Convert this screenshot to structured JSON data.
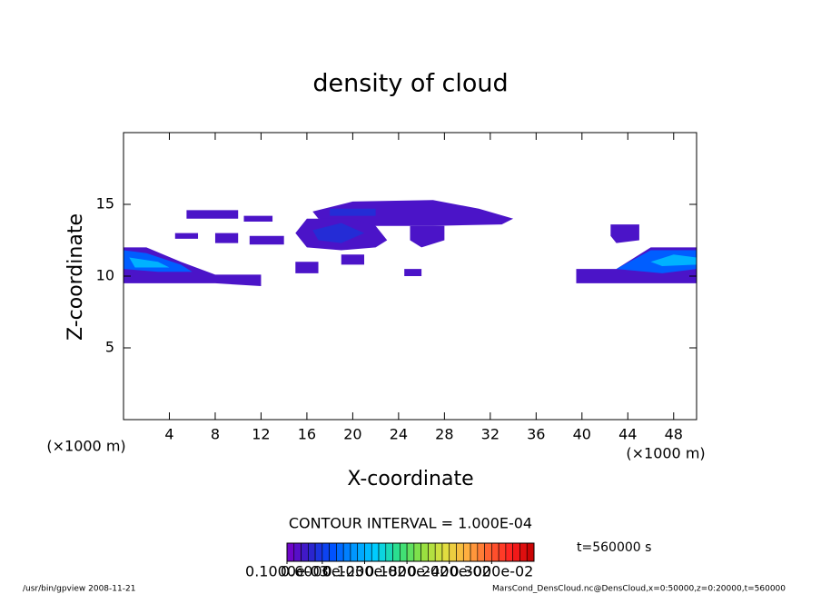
{
  "chart_data": {
    "type": "contour",
    "title": "density of cloud",
    "xlabel": "X-coordinate",
    "ylabel": "Z-coordinate",
    "x_unit_left": "(×1000 m)",
    "x_unit_right": "(×1000 m)",
    "xlim": [
      0,
      50
    ],
    "ylim": [
      0,
      20
    ],
    "xticks": [
      4,
      8,
      12,
      16,
      20,
      24,
      28,
      32,
      36,
      40,
      44,
      48
    ],
    "yticks": [
      5,
      10,
      15
    ],
    "contour_interval_text": "CONTOUR INTERVAL = 1.000E-04",
    "time_text": "t=560000 s",
    "colorbar_lim": [
      0.0001,
      0.0036
    ],
    "colorbar_step": 0.0001,
    "colorbar_ticks": [
      {
        "value": 0.0001,
        "label": "0.1000e-03"
      },
      {
        "value": 0.0006,
        "label": "0.6000e-03"
      },
      {
        "value": 0.0012,
        "label": "0.1200e-02"
      },
      {
        "value": 0.0018,
        "label": "0.1800e-02"
      },
      {
        "value": 0.0024,
        "label": "0.2400e-02"
      },
      {
        "value": 0.003,
        "label": "0.3000e-02"
      }
    ],
    "colormap": [
      "#7a00c8",
      "#3020c8",
      "#0050ff",
      "#0098ff",
      "#00d0ff",
      "#30e080",
      "#90e040",
      "#e0e040",
      "#ffb040",
      "#ff6030",
      "#ff2020",
      "#c00000"
    ],
    "patches": [
      {
        "value": 0.0003,
        "points": [
          [
            0,
            12
          ],
          [
            2,
            12
          ],
          [
            5,
            11
          ],
          [
            8,
            10.1
          ],
          [
            12,
            10.1
          ],
          [
            12,
            9.3
          ],
          [
            8,
            9.5
          ],
          [
            0,
            9.5
          ]
        ]
      },
      {
        "value": 0.0008,
        "points": [
          [
            0,
            11.8
          ],
          [
            2,
            11.6
          ],
          [
            5,
            10.8
          ],
          [
            6,
            10.3
          ],
          [
            3,
            10.3
          ],
          [
            0,
            10.5
          ]
        ]
      },
      {
        "value": 0.0012,
        "points": [
          [
            0.5,
            11.3
          ],
          [
            3,
            11
          ],
          [
            4,
            10.6
          ],
          [
            1,
            10.6
          ]
        ]
      },
      {
        "value": 0.0003,
        "points": [
          [
            39.5,
            10.5
          ],
          [
            43,
            10.5
          ],
          [
            46,
            12
          ],
          [
            50,
            12
          ],
          [
            50,
            9.5
          ],
          [
            39.5,
            9.5
          ]
        ]
      },
      {
        "value": 0.0008,
        "points": [
          [
            43,
            10.5
          ],
          [
            46,
            11.8
          ],
          [
            50,
            11.8
          ],
          [
            50,
            10.5
          ],
          [
            47,
            10.2
          ]
        ]
      },
      {
        "value": 0.0012,
        "points": [
          [
            46,
            11
          ],
          [
            48,
            11.5
          ],
          [
            50,
            11.3
          ],
          [
            50,
            10.8
          ],
          [
            47,
            10.7
          ]
        ]
      },
      {
        "value": 0.0003,
        "points": [
          [
            5.5,
            14.6
          ],
          [
            10,
            14.6
          ],
          [
            10,
            14
          ],
          [
            5.5,
            14
          ]
        ]
      },
      {
        "value": 0.0003,
        "points": [
          [
            4.5,
            13
          ],
          [
            6.5,
            13
          ],
          [
            6.5,
            12.6
          ],
          [
            4.5,
            12.6
          ]
        ]
      },
      {
        "value": 0.0003,
        "points": [
          [
            8,
            13
          ],
          [
            10,
            13
          ],
          [
            10,
            12.3
          ],
          [
            8,
            12.3
          ]
        ]
      },
      {
        "value": 0.0003,
        "points": [
          [
            10.5,
            14.2
          ],
          [
            13,
            14.2
          ],
          [
            13,
            13.8
          ],
          [
            10.5,
            13.8
          ]
        ]
      },
      {
        "value": 0.0003,
        "points": [
          [
            11,
            12.8
          ],
          [
            14,
            12.8
          ],
          [
            14,
            12.2
          ],
          [
            11,
            12.2
          ]
        ]
      },
      {
        "value": 0.0003,
        "points": [
          [
            16.5,
            14.5
          ],
          [
            20,
            15.2
          ],
          [
            27,
            15.3
          ],
          [
            31,
            14.7
          ],
          [
            34,
            14
          ],
          [
            33,
            13.6
          ],
          [
            27,
            13.5
          ],
          [
            22,
            13.5
          ],
          [
            17,
            14
          ]
        ]
      },
      {
        "value": 0.0003,
        "points": [
          [
            16,
            14
          ],
          [
            20,
            14
          ],
          [
            22,
            13.5
          ],
          [
            23,
            12.5
          ],
          [
            22,
            12
          ],
          [
            19,
            11.8
          ],
          [
            16,
            12
          ],
          [
            15,
            13
          ]
        ]
      },
      {
        "value": 0.0003,
        "points": [
          [
            25,
            13.5
          ],
          [
            28,
            13.5
          ],
          [
            28,
            12.5
          ],
          [
            26,
            12
          ],
          [
            25,
            12.5
          ]
        ]
      },
      {
        "value": 0.0003,
        "points": [
          [
            15,
            11
          ],
          [
            17,
            11
          ],
          [
            17,
            10.2
          ],
          [
            15,
            10.2
          ]
        ]
      },
      {
        "value": 0.0003,
        "points": [
          [
            19,
            11.5
          ],
          [
            21,
            11.5
          ],
          [
            21,
            10.8
          ],
          [
            19,
            10.8
          ]
        ]
      },
      {
        "value": 0.0003,
        "points": [
          [
            24.5,
            10.5
          ],
          [
            26,
            10.5
          ],
          [
            26,
            10
          ],
          [
            24.5,
            10
          ]
        ]
      },
      {
        "value": 0.0003,
        "points": [
          [
            42.5,
            13.6
          ],
          [
            45,
            13.6
          ],
          [
            45,
            12.5
          ],
          [
            43,
            12.3
          ],
          [
            42.5,
            12.8
          ]
        ]
      },
      {
        "value": 0.0005,
        "points": [
          [
            16.5,
            13.2
          ],
          [
            19,
            13.7
          ],
          [
            21,
            13
          ],
          [
            19,
            12.3
          ],
          [
            17,
            12.5
          ]
        ]
      },
      {
        "value": 0.0005,
        "points": [
          [
            18,
            14.7
          ],
          [
            22,
            14.7
          ],
          [
            22,
            14.2
          ],
          [
            18,
            14.2
          ]
        ]
      }
    ],
    "footer_left": "/usr/bin/gpview   2008-11-21",
    "footer_right": "MarsCond_DensCloud.nc@DensCloud,x=0:50000,z=0:20000,t=560000"
  }
}
